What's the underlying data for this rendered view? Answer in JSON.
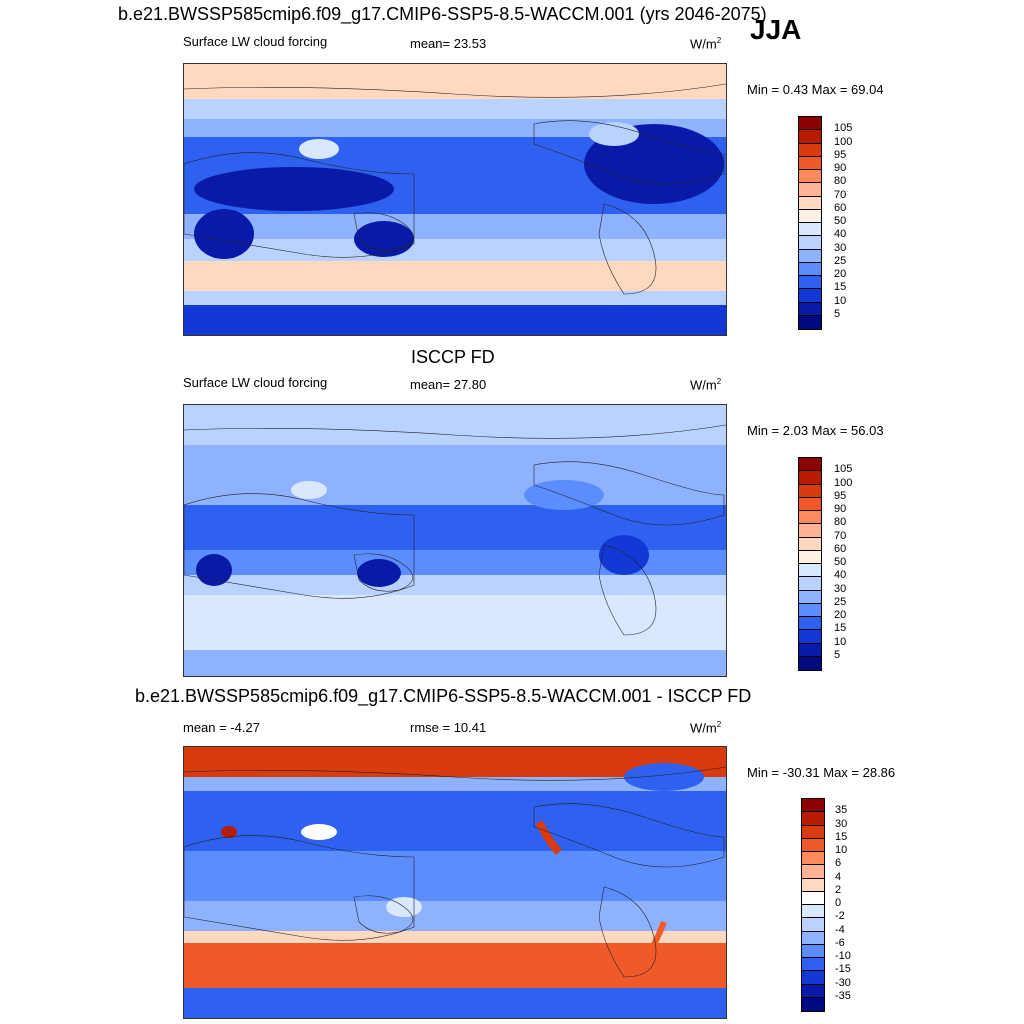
{
  "season": "JJA",
  "panels": [
    {
      "title": "b.e21.BWSSP585cmip6.f09_g17.CMIP6-SSP5-8.5-WACCM.001 (yrs 2046-2075)",
      "left_label": "Surface LW cloud forcing",
      "center_label": "mean=  23.53",
      "units": "W/m",
      "units_sup": "2",
      "minmax": "Min =   0.43 Max =  69.04",
      "colorbar_labels": [
        "105",
        "100",
        "95",
        "90",
        "80",
        "70",
        "60",
        "50",
        "40",
        "30",
        "25",
        "20",
        "15",
        "10",
        "5"
      ],
      "colorbar_colors": [
        "#8b0000",
        "#b81c00",
        "#d93a0e",
        "#f05a2a",
        "#ff8a5c",
        "#ffb394",
        "#ffd8c0",
        "#fff0e4",
        "#d9e8ff",
        "#b9d2ff",
        "#8fb2ff",
        "#5c8dff",
        "#2e61f0",
        "#1238d6",
        "#0a1aa8",
        "#000a80"
      ]
    },
    {
      "title": "ISCCP FD",
      "left_label": "Surface LW cloud forcing",
      "center_label": "mean=  27.80",
      "units": "W/m",
      "units_sup": "2",
      "minmax": "Min =   2.03 Max =  56.03",
      "colorbar_labels": [
        "105",
        "100",
        "95",
        "90",
        "80",
        "70",
        "60",
        "50",
        "40",
        "30",
        "25",
        "20",
        "15",
        "10",
        "5"
      ],
      "colorbar_colors": [
        "#8b0000",
        "#b81c00",
        "#d93a0e",
        "#f05a2a",
        "#ff8a5c",
        "#ffb394",
        "#ffd8c0",
        "#fff0e4",
        "#d9e8ff",
        "#b9d2ff",
        "#8fb2ff",
        "#5c8dff",
        "#2e61f0",
        "#1238d6",
        "#0a1aa8",
        "#000a80"
      ]
    },
    {
      "title": "b.e21.BWSSP585cmip6.f09_g17.CMIP6-SSP5-8.5-WACCM.001 - ISCCP FD",
      "left_label": "mean =  -4.27",
      "center_label": "rmse =  10.41",
      "units": "W/m",
      "units_sup": "2",
      "minmax": "Min = -30.31 Max =  28.86",
      "colorbar_labels": [
        "35",
        "30",
        "15",
        "10",
        "6",
        "4",
        "2",
        "0",
        "-2",
        "-4",
        "-6",
        "-10",
        "-15",
        "-30",
        "-35"
      ],
      "colorbar_colors": [
        "#8b0000",
        "#b81c00",
        "#d93a0e",
        "#f05a2a",
        "#ff8a5c",
        "#ffb394",
        "#ffd8c0",
        "#ffffff",
        "#d9e8ff",
        "#b9d2ff",
        "#8fb2ff",
        "#5c8dff",
        "#2e61f0",
        "#1238d6",
        "#0a1aa8",
        "#000a80"
      ]
    }
  ],
  "chart_data": [
    {
      "type": "heatmap",
      "title": "b.e21.BWSSP585cmip6.f09_g17.CMIP6-SSP5-8.5-WACCM.001 (yrs 2046-2075)",
      "variable": "Surface LW cloud forcing",
      "mean": 23.53,
      "min": 0.43,
      "max": 69.04,
      "contour_levels": [
        5,
        10,
        15,
        20,
        25,
        30,
        40,
        50,
        60,
        70,
        80,
        90,
        95,
        100,
        105
      ]
    },
    {
      "type": "heatmap",
      "title": "ISCCP FD",
      "variable": "Surface LW cloud forcing",
      "mean": 27.8,
      "min": 2.03,
      "max": 56.03,
      "contour_levels": [
        5,
        10,
        15,
        20,
        25,
        30,
        40,
        50,
        60,
        70,
        80,
        90,
        95,
        100,
        105
      ]
    },
    {
      "type": "heatmap",
      "title": "b.e21.BWSSP585cmip6.f09_g17.CMIP6-SSP5-8.5-WACCM.001 - ISCCP FD",
      "mean": -4.27,
      "rmse": 10.41,
      "min": -30.31,
      "max": 28.86,
      "contour_levels": [
        -35,
        -30,
        -15,
        -10,
        -6,
        -4,
        -2,
        0,
        2,
        4,
        6,
        10,
        15,
        30,
        35
      ]
    }
  ]
}
